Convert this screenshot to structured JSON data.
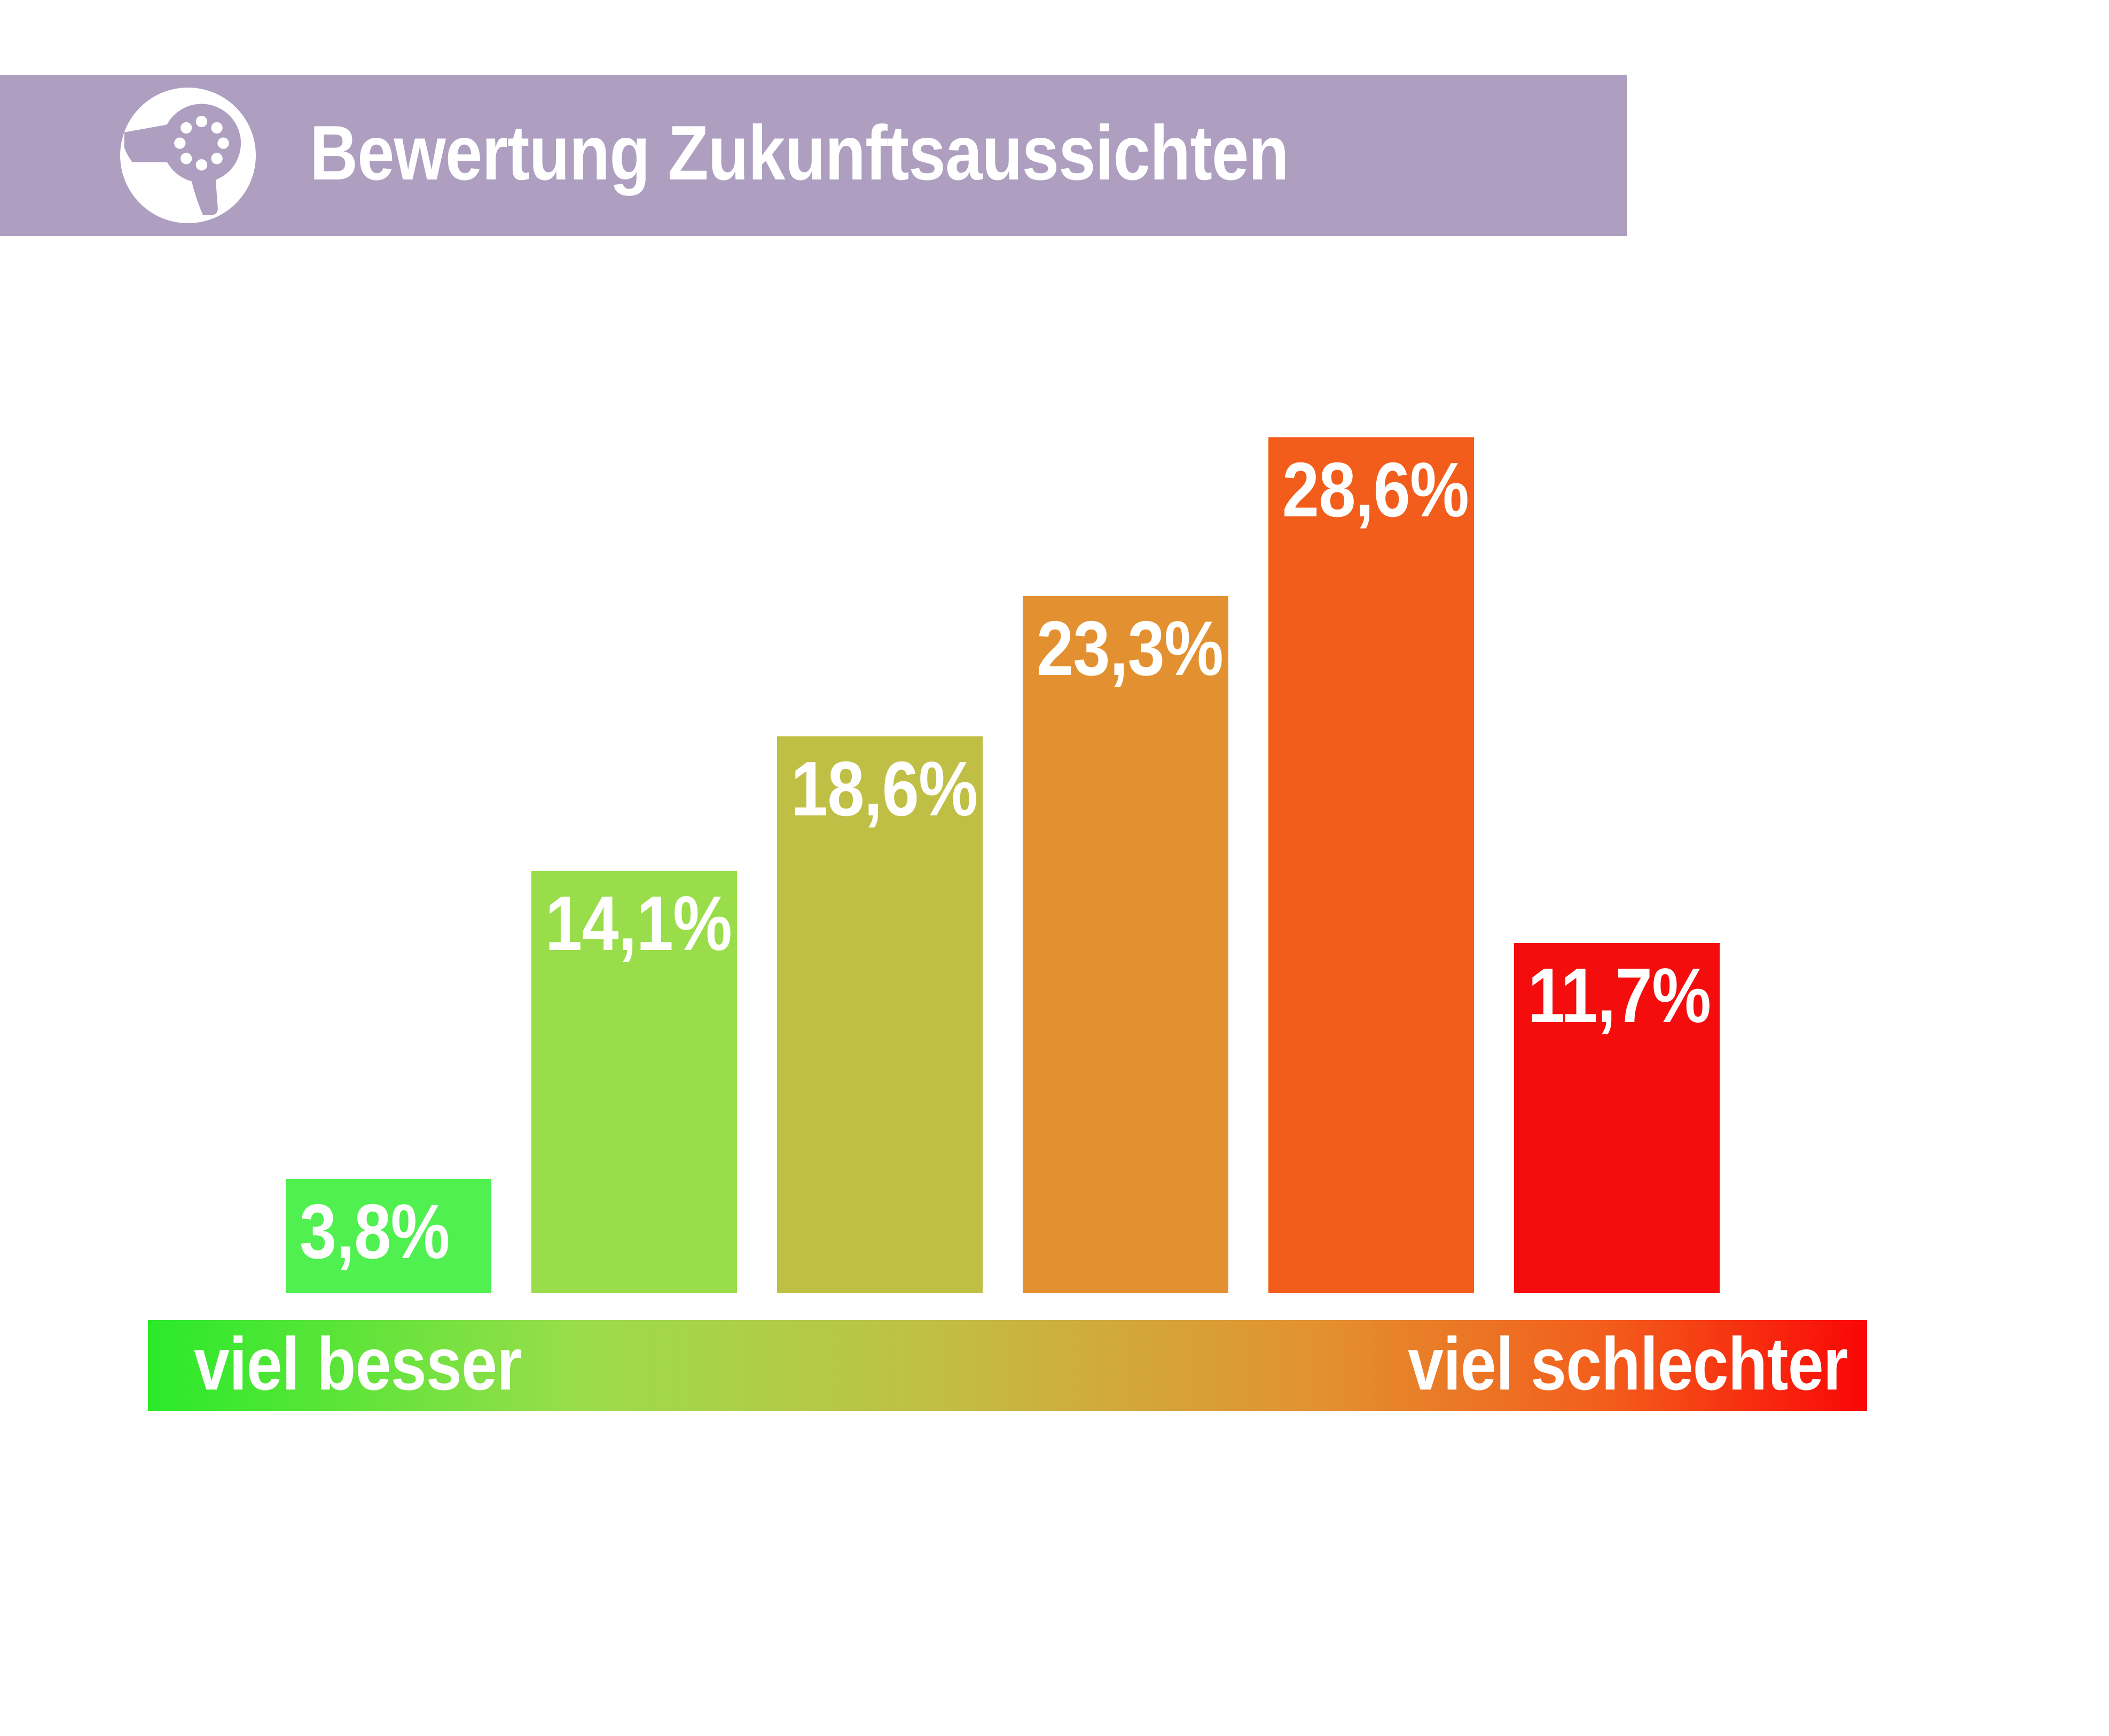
{
  "header": {
    "title": "Bewertung Zukunftsaussichten",
    "background_color": "#ae9fc1",
    "icon": {
      "name": "hair-dryer-icon",
      "color": "#ae9fc1",
      "background": "#ffffff"
    }
  },
  "chart_data": {
    "type": "bar",
    "title": "Bewertung Zukunftsaussichten",
    "unit": "%",
    "values": [
      3.8,
      14.1,
      18.6,
      23.3,
      28.6,
      11.7
    ],
    "value_labels": [
      "3,8%",
      "14,1%",
      "18,6%",
      "23,3%",
      "28,6%",
      "11,7%"
    ],
    "bar_colors": [
      "#4ff04f",
      "#99dd4b",
      "#bfbf46",
      "#e39130",
      "#f35d1b",
      "#f50d0d"
    ],
    "label_color": "#ffffff",
    "ylim": [
      0,
      30
    ],
    "grid": false,
    "legend": false,
    "x_axis": {
      "type": "gradient-scale",
      "left_label": "viel besser",
      "right_label": "viel schlechter",
      "gradient_stops": [
        "#2aea2a",
        "#9add4b",
        "#c0c046",
        "#e39130",
        "#f35d1b",
        "#fa0606"
      ]
    }
  }
}
